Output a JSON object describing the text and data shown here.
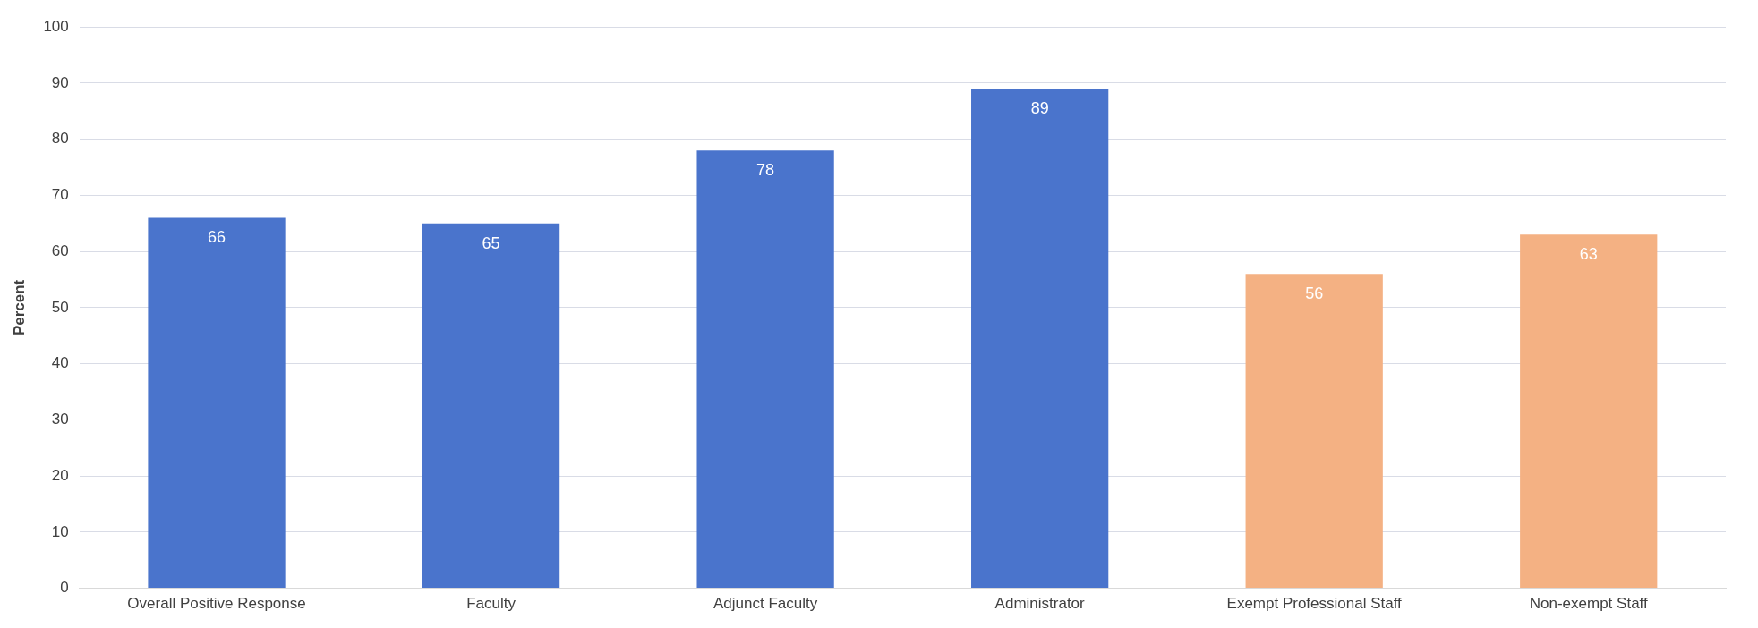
{
  "chart_data": {
    "type": "bar",
    "ylabel": "Percent",
    "categories": [
      "Overall Positive Response",
      "Faculty",
      "Adjunct Faculty",
      "Administrator",
      "Exempt Professional Staff",
      "Non-exempt Staff"
    ],
    "values": [
      66,
      65,
      78,
      89,
      56,
      63
    ],
    "colors": [
      "#4a74cc",
      "#4a74cc",
      "#4a74cc",
      "#4a74cc",
      "#f4b183",
      "#f4b183"
    ],
    "ylim": [
      0,
      100
    ],
    "yticks": [
      0,
      10,
      20,
      30,
      40,
      50,
      60,
      70,
      80,
      90,
      100
    ],
    "grid": "y",
    "data_labels": true,
    "legend": false
  }
}
